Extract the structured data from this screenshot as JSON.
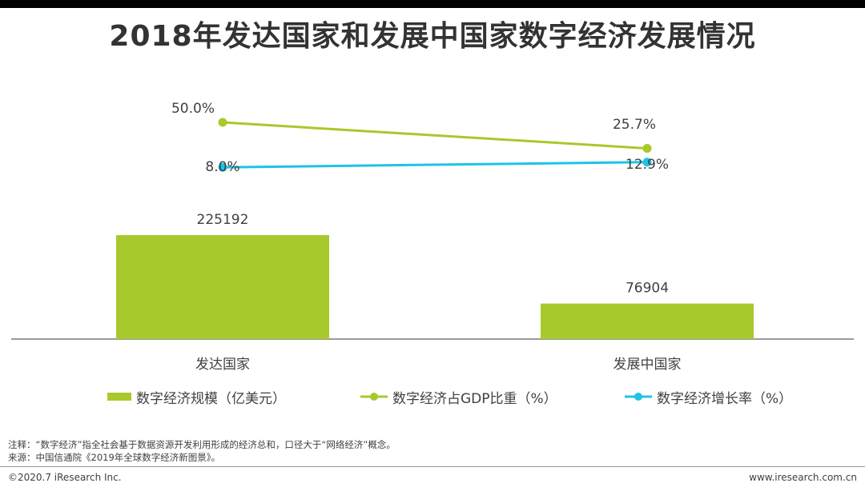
{
  "title": "2018年发达国家和发展中国家数字经济发展情况",
  "colors": {
    "bar": "#a8c92c",
    "gdp_line": "#a8c92c",
    "growth_line": "#1ec3e6"
  },
  "chart_data": {
    "type": "bar",
    "categories": [
      "发达国家",
      "发展中国家"
    ],
    "series": [
      {
        "name": "数字经济规模（亿美元）",
        "type": "bar",
        "values": [
          225192,
          76904
        ],
        "labels": [
          "225192",
          "76904"
        ]
      },
      {
        "name": "数字经济占GDP比重（%）",
        "type": "line",
        "values": [
          50.0,
          25.7
        ],
        "labels": [
          "50.0%",
          "25.7%"
        ]
      },
      {
        "name": "数字经济增长率（%）",
        "type": "line",
        "values": [
          8.0,
          12.9
        ],
        "labels": [
          "8.0%",
          "12.9%"
        ]
      }
    ],
    "legend_position": "bottom",
    "grid": false
  },
  "notes": {
    "note": "注释：“数字经济”指全社会基于数据资源开发利用形成的经济总和，口径大于“网络经济”概念。",
    "source": "来源：中国信通院《2019年全球数字经济新图景》。"
  },
  "footer": {
    "copyright": "©2020.7 iResearch Inc.",
    "website": "www.iresearch.com.cn"
  }
}
